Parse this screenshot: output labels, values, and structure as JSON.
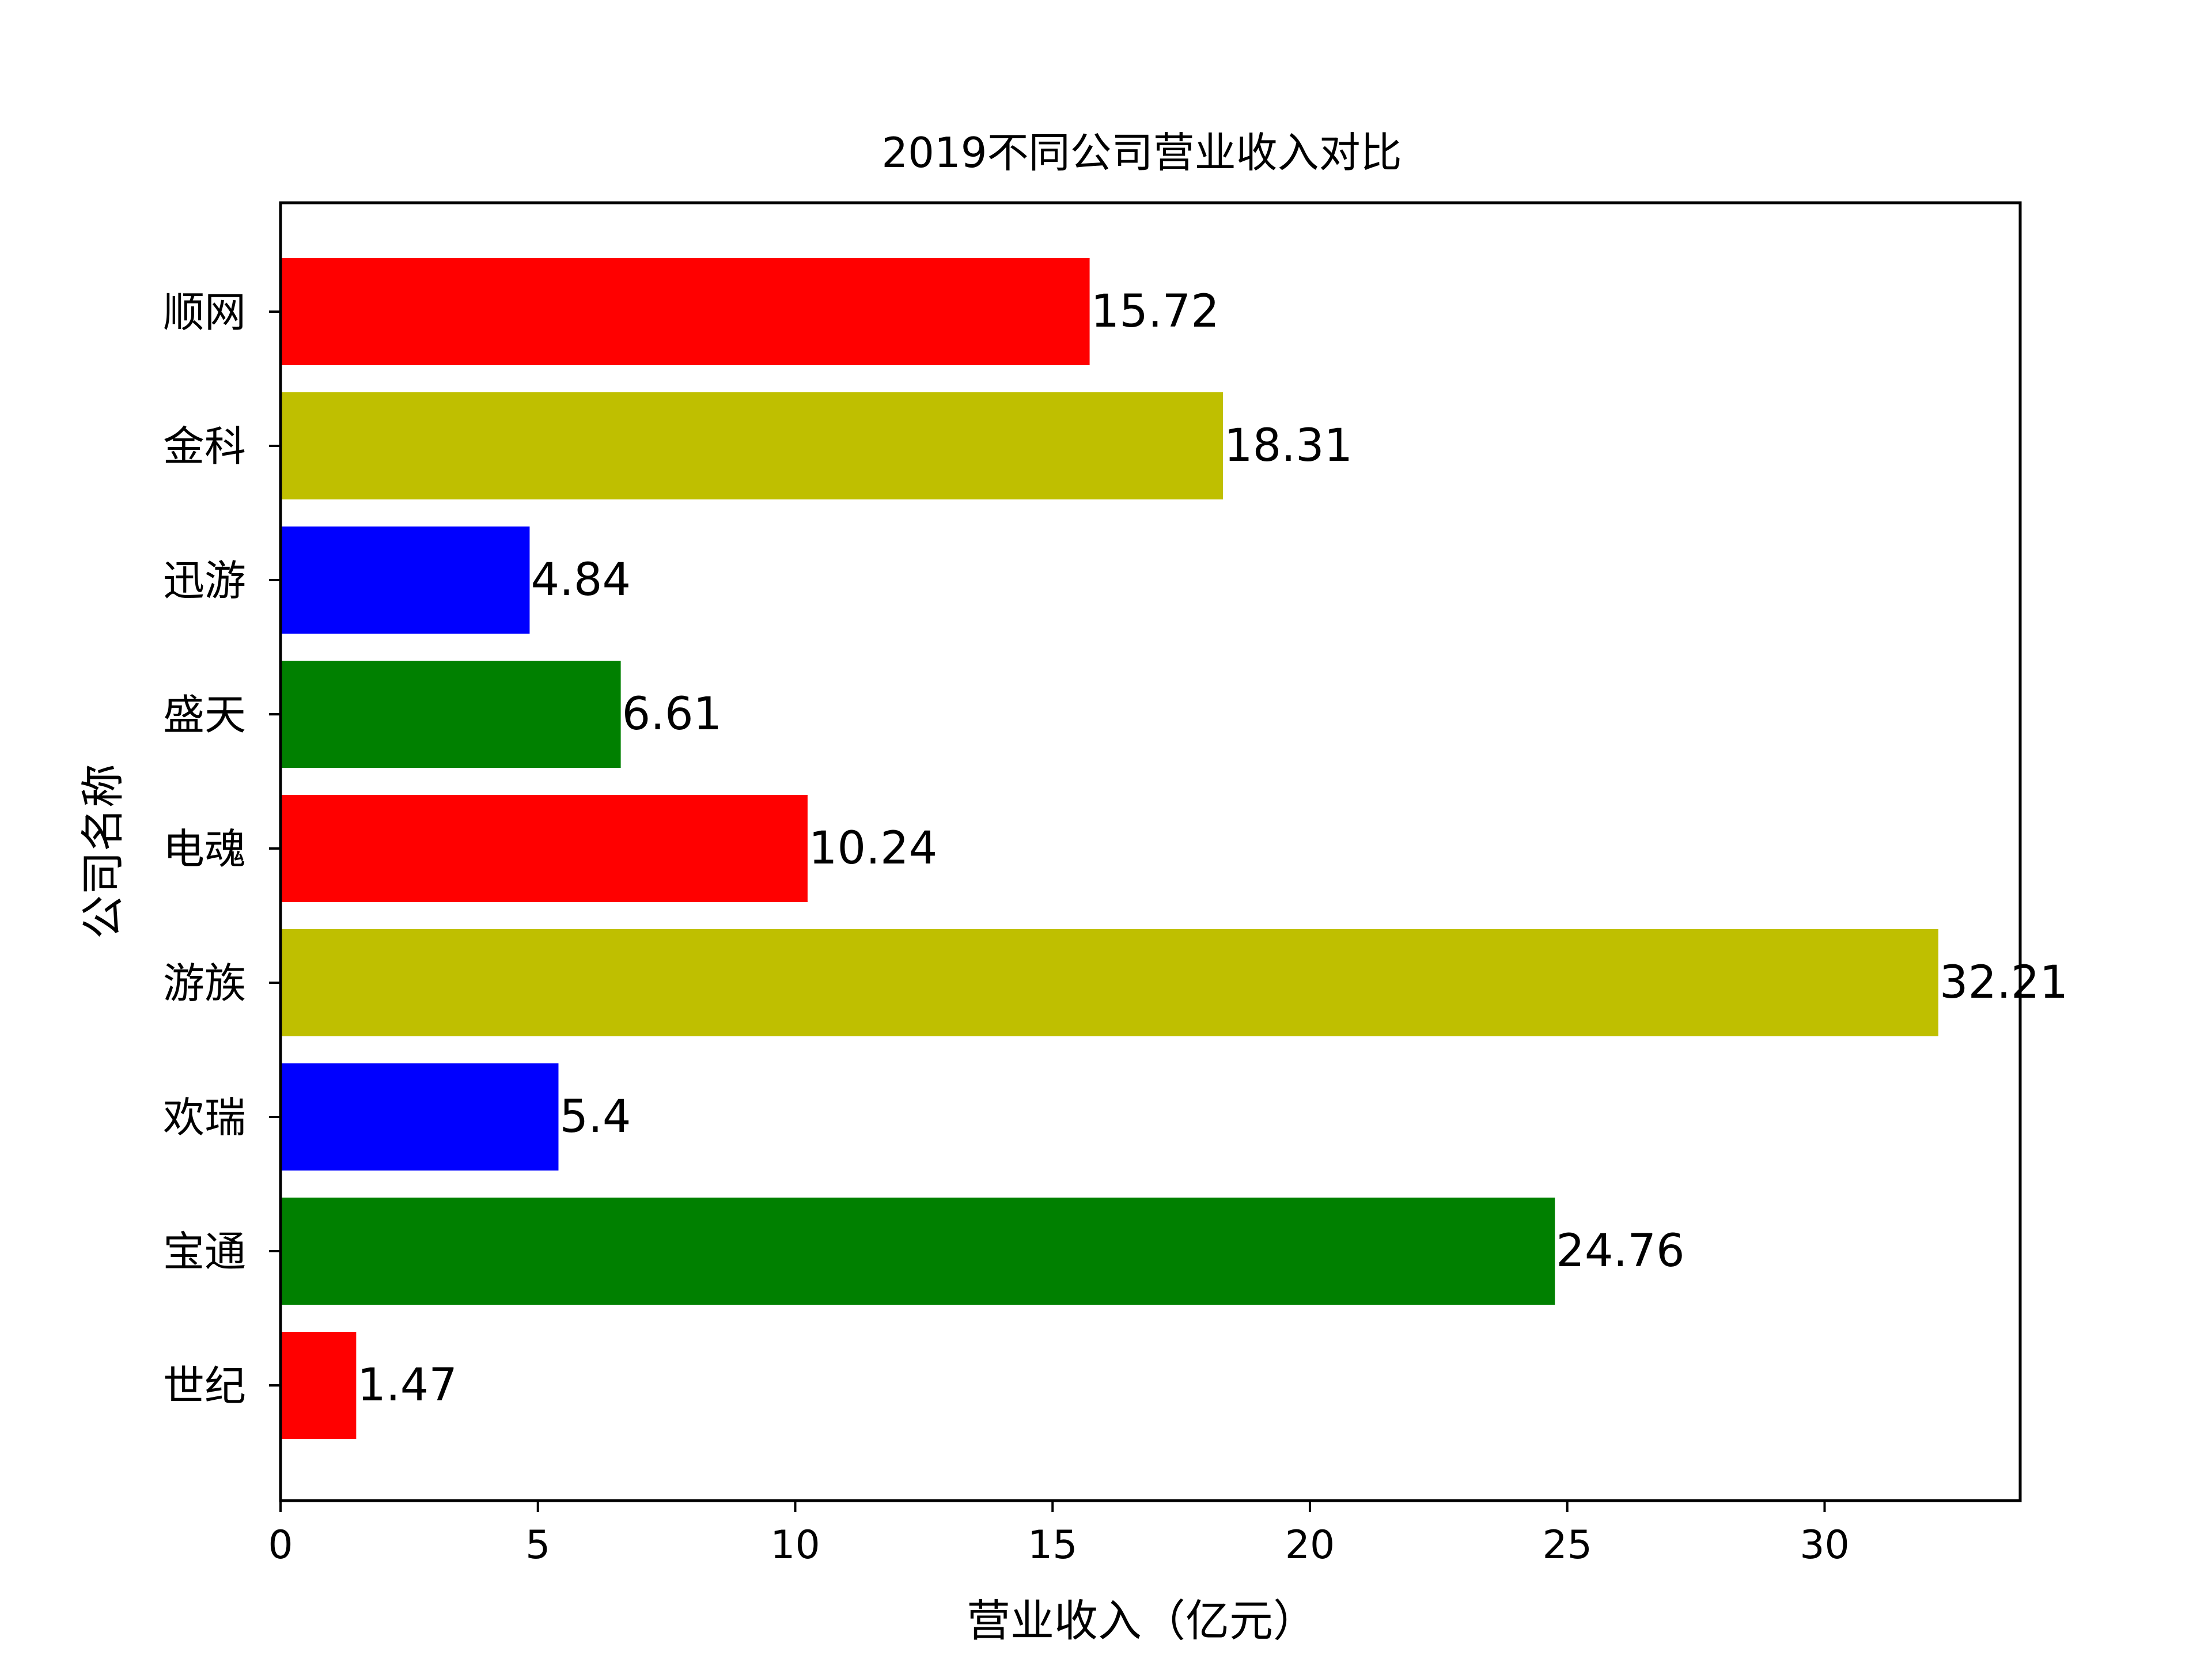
{
  "chart_data": {
    "type": "bar",
    "orientation": "horizontal",
    "title": "2019不同公司营业收入对比",
    "xlabel": "营业收入（亿元）",
    "ylabel": "公司名称",
    "categories": [
      "世纪",
      "宝通",
      "欢瑞",
      "游族",
      "电魂",
      "盛天",
      "迅游",
      "金科",
      "顺网"
    ],
    "values": [
      1.47,
      24.76,
      5.4,
      32.21,
      10.24,
      6.61,
      4.84,
      18.31,
      15.72
    ],
    "value_labels": [
      "1.47",
      "24.76",
      "5.4",
      "32.21",
      "10.24",
      "6.61",
      "4.84",
      "18.31",
      "15.72"
    ],
    "bar_colors": [
      "#ff0000",
      "#008000",
      "#0000ff",
      "#bfbf00",
      "#ff0000",
      "#008000",
      "#0000ff",
      "#bfbf00",
      "#ff0000"
    ],
    "xlim": [
      0,
      33.8
    ],
    "xticks": [
      0,
      5,
      10,
      15,
      20,
      25,
      30
    ],
    "xtick_labels": [
      "0",
      "5",
      "10",
      "15",
      "20",
      "25",
      "30"
    ],
    "grid": false,
    "legend": "none"
  }
}
